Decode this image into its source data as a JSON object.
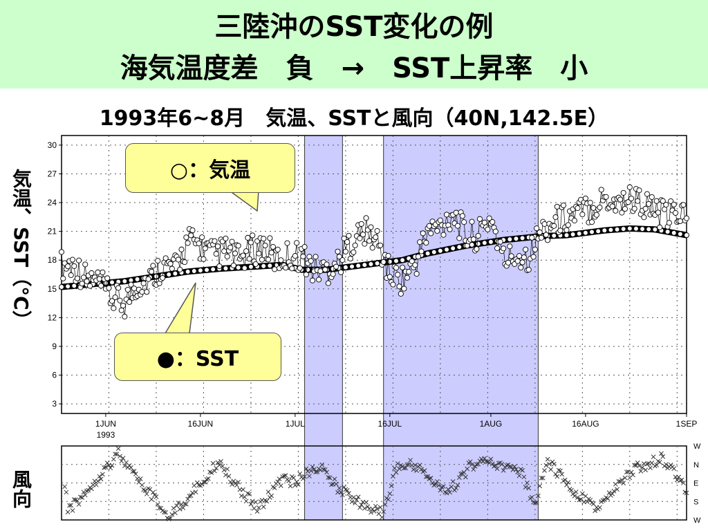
{
  "title_line1": "三陸沖のSST変化の例",
  "title_line2": "海気温度差　負　→　SST上昇率　小",
  "colors": {
    "banner": "#ccffcc",
    "highlight": "#ccccff",
    "callout": "#ffff99"
  },
  "callouts": {
    "air": "○：気温",
    "sst": "●：SST"
  },
  "chart_data": [
    {
      "type": "line",
      "title": "1993年6~8月　気温、SSTと風向（40N,142.5E）",
      "xlabel": "",
      "ylabel": "気温、SST（°C）",
      "x_range_days": [
        0,
        99
      ],
      "x_start_date": "1993-05-25",
      "ylim": [
        2,
        31
      ],
      "yticks": [
        "3",
        "6",
        "9",
        "12",
        "15",
        "18",
        "21",
        "24",
        "27",
        "30"
      ],
      "xtick_labels": [
        {
          "day": 7,
          "label": "1JUN",
          "sub": "1993"
        },
        {
          "day": 22,
          "label": "16JUN"
        },
        {
          "day": 37,
          "label": "1JUL"
        },
        {
          "day": 52,
          "label": "16JUL"
        },
        {
          "day": 68,
          "label": "1AUG"
        },
        {
          "day": 83,
          "label": "16AUG"
        },
        {
          "day": 99,
          "label": "1SEP"
        }
      ],
      "grid": true,
      "highlight_periods": [
        [
          38.5,
          44.5
        ],
        [
          51,
          75.5
        ]
      ],
      "series": [
        {
          "name": "気温",
          "marker": "open-circle",
          "anchors_day_value": [
            [
              0,
              17.5
            ],
            [
              2,
              17.5
            ],
            [
              4,
              16
            ],
            [
              6,
              15.5
            ],
            [
              8,
              14
            ],
            [
              10,
              13.5
            ],
            [
              12,
              15.5
            ],
            [
              14,
              16
            ],
            [
              16,
              17.5
            ],
            [
              18,
              17
            ],
            [
              20,
              20
            ],
            [
              22,
              19.5
            ],
            [
              24,
              18.5
            ],
            [
              26,
              19
            ],
            [
              28,
              18
            ],
            [
              30,
              19
            ],
            [
              32,
              19.5
            ],
            [
              34,
              18
            ],
            [
              36,
              18.5
            ],
            [
              38,
              18.5
            ],
            [
              40,
              17
            ],
            [
              42,
              17
            ],
            [
              44,
              18
            ],
            [
              46,
              20
            ],
            [
              48,
              21
            ],
            [
              50,
              20
            ],
            [
              52,
              16.5
            ],
            [
              54,
              16
            ],
            [
              56,
              17.5
            ],
            [
              58,
              21
            ],
            [
              60,
              21.5
            ],
            [
              62,
              23
            ],
            [
              64,
              20.5
            ],
            [
              66,
              20.5
            ],
            [
              68,
              22.5
            ],
            [
              70,
              18
            ],
            [
              72,
              18.5
            ],
            [
              74,
              18.5
            ],
            [
              76,
              21
            ],
            [
              78,
              22
            ],
            [
              80,
              22.5
            ],
            [
              82,
              23
            ],
            [
              84,
              23.5
            ],
            [
              86,
              24.5
            ],
            [
              88,
              24
            ],
            [
              90,
              24.5
            ],
            [
              92,
              24
            ],
            [
              94,
              23
            ],
            [
              96,
              22.5
            ],
            [
              98,
              23
            ],
            [
              99,
              22.5
            ]
          ]
        },
        {
          "name": "SST",
          "marker": "filled-circle",
          "anchors_day_value": [
            [
              0,
              15.2
            ],
            [
              5,
              15.5
            ],
            [
              10,
              15.8
            ],
            [
              15,
              16.3
            ],
            [
              20,
              16.8
            ],
            [
              25,
              17.1
            ],
            [
              30,
              17.3
            ],
            [
              35,
              17.5
            ],
            [
              38,
              17
            ],
            [
              42,
              17
            ],
            [
              48,
              17.5
            ],
            [
              54,
              18
            ],
            [
              58,
              18.7
            ],
            [
              64,
              19.5
            ],
            [
              70,
              20.1
            ],
            [
              76,
              20.5
            ],
            [
              80,
              20.6
            ],
            [
              86,
              21.1
            ],
            [
              90,
              21.3
            ],
            [
              94,
              21.2
            ],
            [
              99,
              20.6
            ]
          ]
        }
      ]
    },
    {
      "type": "scatter",
      "title": "",
      "ylabel": "風向",
      "y_categories": [
        "W",
        "N",
        "E",
        "S",
        "W"
      ],
      "marker": "x",
      "anchors_day_direction_index": [
        [
          1,
          3.6
        ],
        [
          3,
          2.8
        ],
        [
          5,
          2.0
        ],
        [
          7,
          1.2
        ],
        [
          9,
          0.4
        ],
        [
          11,
          1.4
        ],
        [
          13,
          2.2
        ],
        [
          15,
          3.0
        ],
        [
          17,
          3.8
        ],
        [
          19,
          3.2
        ],
        [
          21,
          2.4
        ],
        [
          23,
          1.6
        ],
        [
          25,
          0.8
        ],
        [
          27,
          1.8
        ],
        [
          29,
          2.6
        ],
        [
          31,
          3.4
        ],
        [
          33,
          2.6
        ],
        [
          35,
          1.8
        ],
        [
          37,
          2.0
        ],
        [
          39,
          1.4
        ],
        [
          41,
          1.2
        ],
        [
          43,
          2.0
        ],
        [
          45,
          2.6
        ],
        [
          47,
          3.0
        ],
        [
          49,
          3.4
        ],
        [
          51,
          3.6
        ],
        [
          53,
          1.2
        ],
        [
          55,
          1.0
        ],
        [
          57,
          1.2
        ],
        [
          59,
          2.0
        ],
        [
          61,
          2.6
        ],
        [
          63,
          1.8
        ],
        [
          65,
          1.0
        ],
        [
          67,
          0.8
        ],
        [
          69,
          1.0
        ],
        [
          71,
          1.2
        ],
        [
          73,
          1.6
        ],
        [
          75,
          3.2
        ],
        [
          77,
          0.8
        ],
        [
          79,
          1.6
        ],
        [
          81,
          2.4
        ],
        [
          83,
          3.0
        ],
        [
          85,
          3.4
        ],
        [
          87,
          2.6
        ],
        [
          89,
          1.8
        ],
        [
          91,
          1.2
        ],
        [
          93,
          1.0
        ],
        [
          95,
          0.6
        ],
        [
          97,
          1.4
        ],
        [
          99,
          2.4
        ]
      ]
    }
  ]
}
